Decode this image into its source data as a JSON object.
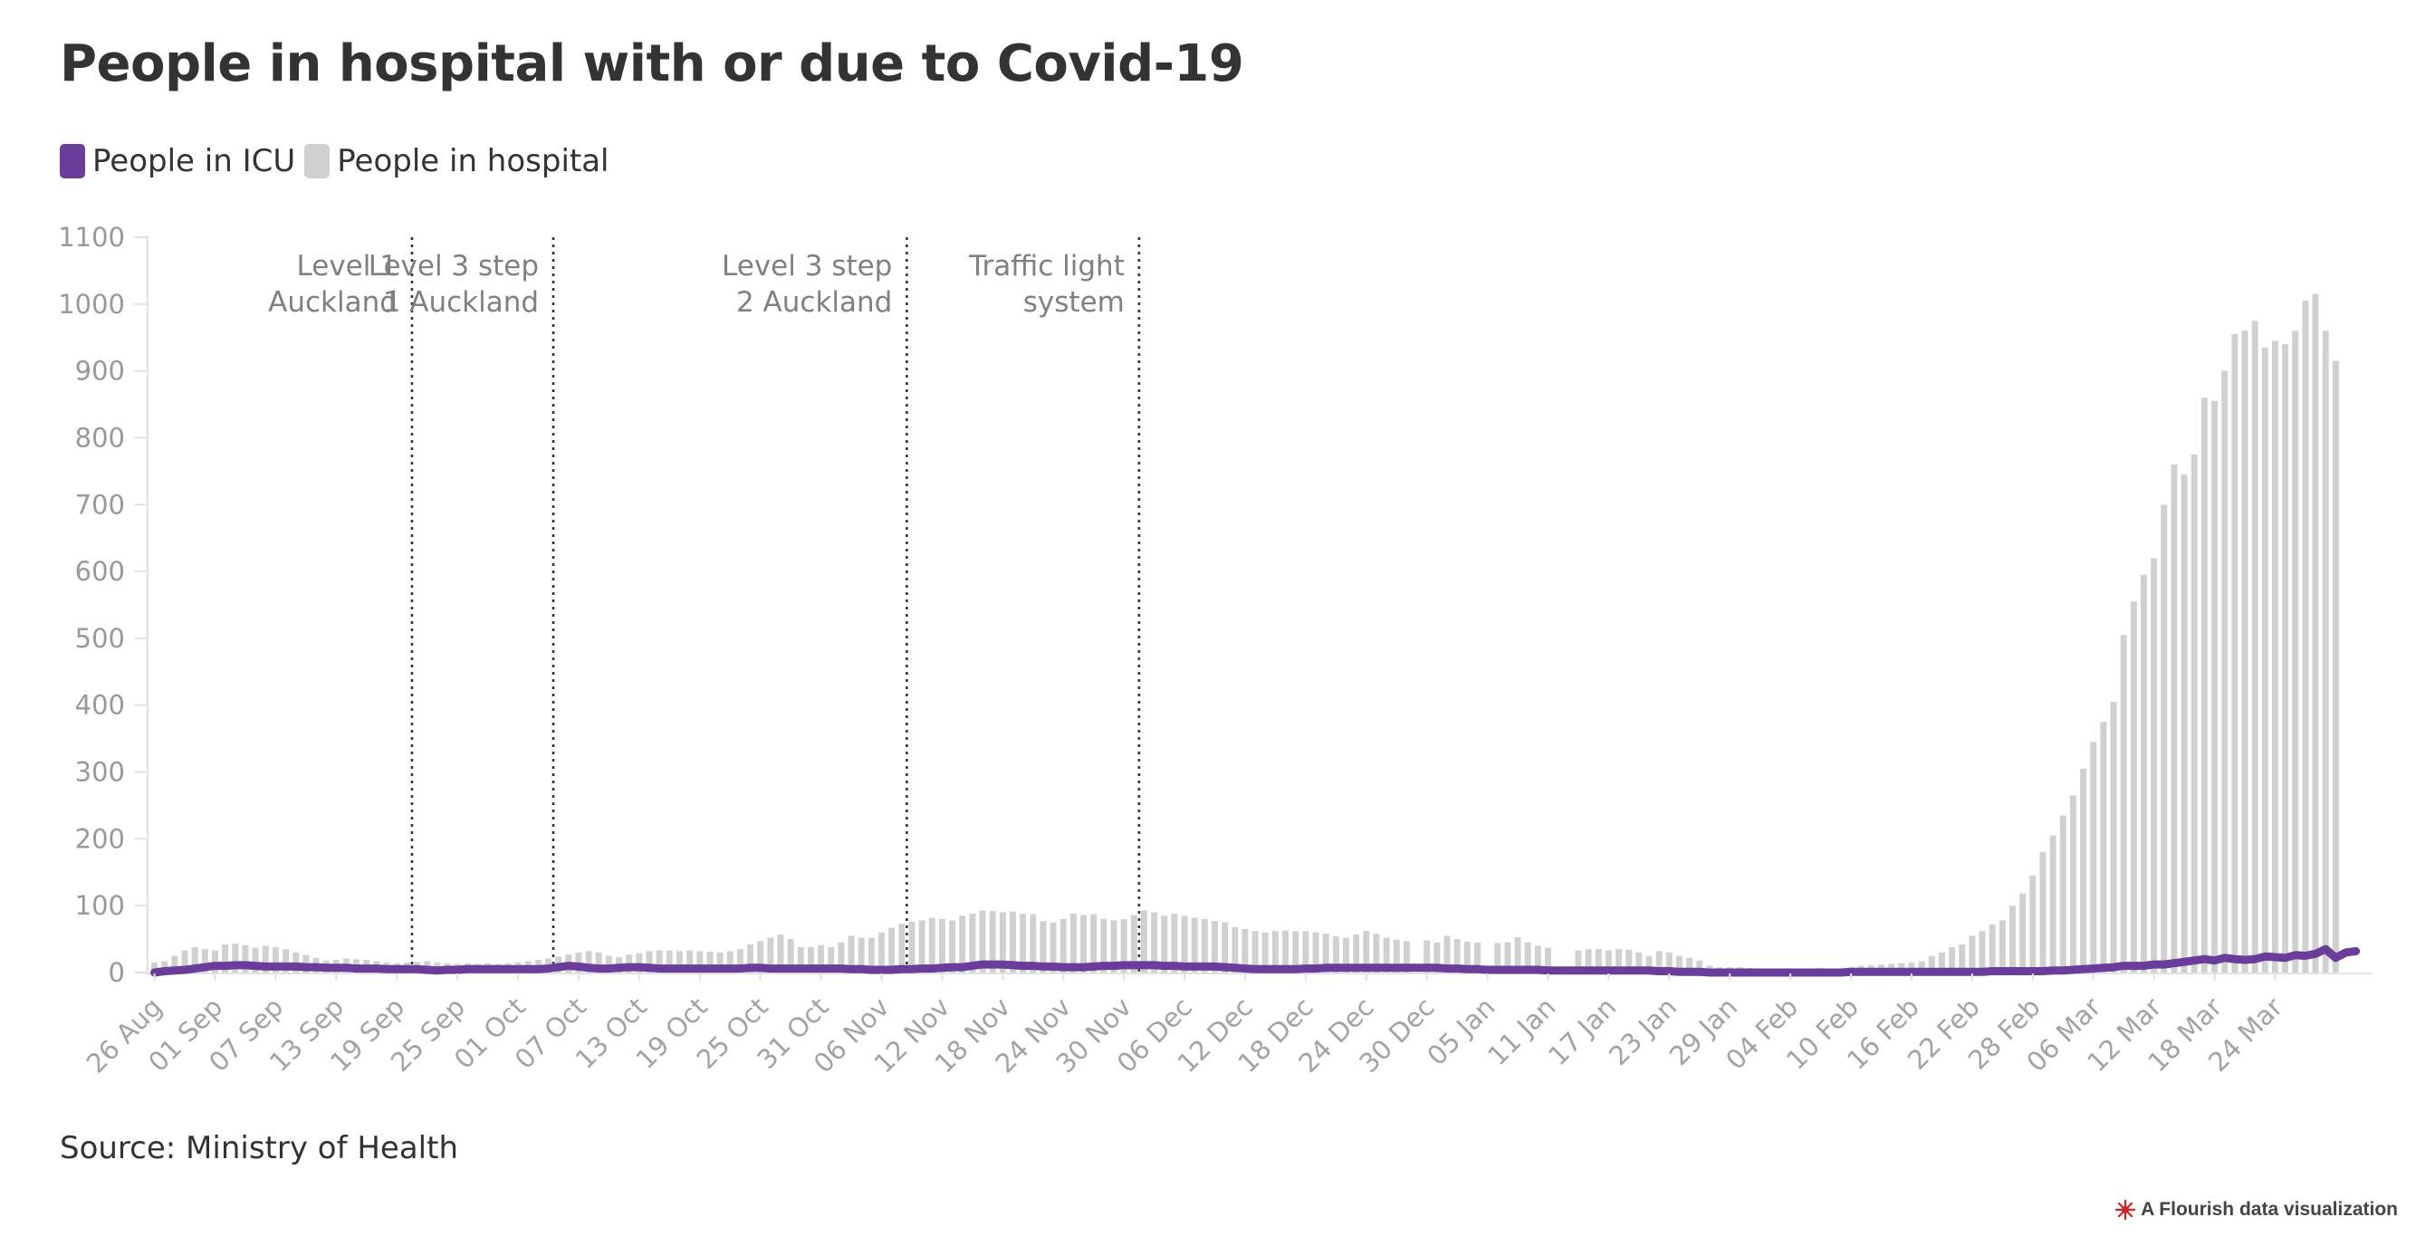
{
  "chart_data": {
    "type": "bar",
    "title": "People in hospital with or due to Covid-19",
    "source": "Source: Ministry of Health",
    "credit": "A Flourish data visualization",
    "colors": {
      "hospital": "#d0d0d0",
      "icu": "#6a3d9a",
      "annotation_line": "#333333"
    },
    "legend_position": "top-left",
    "grid": false,
    "ylim": [
      0,
      1100
    ],
    "yticks": [
      0,
      100,
      200,
      300,
      400,
      500,
      600,
      700,
      800,
      900,
      1000,
      1100
    ],
    "x_range": [
      "2021-08-26",
      "2022-03-25"
    ],
    "xticks": [
      "26 Aug",
      "01 Sep",
      "07 Sep",
      "13 Sep",
      "19 Sep",
      "25 Sep",
      "01 Oct",
      "07 Oct",
      "13 Oct",
      "19 Oct",
      "25 Oct",
      "31 Oct",
      "06 Nov",
      "12 Nov",
      "18 Nov",
      "24 Nov",
      "30 Nov",
      "06 Dec",
      "12 Dec",
      "18 Dec",
      "24 Dec",
      "30 Dec",
      "05 Jan",
      "11 Jan",
      "17 Jan",
      "23 Jan",
      "29 Jan",
      "04 Feb",
      "10 Feb",
      "16 Feb",
      "22 Feb",
      "28 Feb",
      "06 Mar",
      "12 Mar",
      "18 Mar",
      "24 Mar"
    ],
    "annotations": [
      {
        "date": "2021-09-21",
        "lines": [
          "Level 1",
          "Auckland"
        ]
      },
      {
        "date": "2021-10-05",
        "lines": [
          "Level 3 step",
          "1 Auckland"
        ]
      },
      {
        "date": "2021-11-09",
        "lines": [
          "Level 3 step",
          "2 Auckland"
        ]
      },
      {
        "date": "2021-12-02",
        "lines": [
          "Traffic light",
          "system"
        ]
      }
    ],
    "series": [
      {
        "name": "People in hospital",
        "type": "bar",
        "start": "2021-08-26",
        "values": [
          15,
          17,
          25,
          33,
          38,
          35,
          33,
          42,
          43,
          41,
          37,
          40,
          38,
          35,
          30,
          26,
          22,
          18,
          19,
          21,
          20,
          19,
          17,
          15,
          14,
          15,
          16,
          17,
          15,
          14,
          13,
          14,
          13,
          14,
          13,
          14,
          15,
          17,
          19,
          21,
          24,
          27,
          30,
          32,
          30,
          25,
          23,
          27,
          29,
          32,
          33,
          33,
          32,
          33,
          32,
          31,
          30,
          32,
          35,
          42,
          47,
          52,
          57,
          50,
          38,
          38,
          41,
          38,
          45,
          55,
          52,
          52,
          60,
          67,
          73,
          76,
          78,
          82,
          80,
          78,
          85,
          88,
          93,
          92,
          90,
          91,
          88,
          87,
          77,
          75,
          80,
          88,
          86,
          87,
          80,
          78,
          80,
          86,
          93,
          90,
          85,
          88,
          85,
          82,
          80,
          77,
          75,
          68,
          65,
          62,
          60,
          62,
          63,
          62,
          62,
          60,
          58,
          54,
          52,
          57,
          62,
          58,
          52,
          49,
          47,
          0,
          48,
          45,
          55,
          50,
          46,
          45,
          0,
          44,
          45,
          53,
          45,
          40,
          37,
          0,
          0,
          33,
          35,
          35,
          33,
          35,
          34,
          30,
          25,
          32,
          30,
          25,
          22,
          18,
          10,
          8,
          8,
          8,
          7,
          6,
          6,
          5,
          5,
          6,
          6,
          7,
          6,
          6,
          8,
          10,
          11,
          12,
          13,
          14,
          15,
          17,
          25,
          30,
          38,
          42,
          55,
          62,
          72,
          78,
          100,
          118,
          145,
          180,
          205,
          235,
          265,
          305,
          345,
          375,
          405,
          505,
          555,
          595,
          620,
          700,
          760,
          745,
          775,
          860,
          855,
          900,
          955,
          960,
          975,
          935,
          945,
          940,
          960,
          1005,
          1015,
          960,
          915
        ]
      },
      {
        "name": "People in ICU",
        "type": "line",
        "start": "2021-08-26",
        "values": [
          0,
          2,
          3,
          4,
          6,
          8,
          10,
          10,
          11,
          11,
          10,
          9,
          9,
          9,
          9,
          8,
          8,
          7,
          7,
          7,
          6,
          6,
          6,
          5,
          5,
          5,
          5,
          4,
          3,
          4,
          4,
          5,
          5,
          5,
          5,
          5,
          5,
          5,
          5,
          6,
          8,
          10,
          9,
          7,
          6,
          6,
          7,
          8,
          8,
          7,
          6,
          6,
          6,
          6,
          6,
          6,
          6,
          6,
          6,
          7,
          7,
          6,
          6,
          6,
          6,
          6,
          6,
          6,
          6,
          5,
          5,
          4,
          4,
          4,
          5,
          5,
          6,
          6,
          7,
          8,
          8,
          10,
          12,
          12,
          12,
          11,
          10,
          10,
          9,
          9,
          8,
          8,
          8,
          9,
          10,
          10,
          11,
          11,
          11,
          11,
          10,
          10,
          9,
          9,
          9,
          9,
          8,
          7,
          6,
          5,
          5,
          5,
          5,
          5,
          6,
          6,
          7,
          7,
          7,
          7,
          7,
          7,
          7,
          7,
          7,
          7,
          7,
          7,
          6,
          6,
          5,
          5,
          4,
          4,
          4,
          4,
          4,
          4,
          3,
          3,
          3,
          3,
          3,
          3,
          3,
          3,
          3,
          3,
          3,
          2,
          2,
          1,
          1,
          1,
          0,
          0,
          0,
          0,
          0,
          0,
          0,
          0,
          0,
          0,
          0,
          0,
          0,
          0,
          1,
          1,
          1,
          1,
          1,
          1,
          1,
          1,
          1,
          1,
          1,
          1,
          1,
          1,
          2,
          2,
          2,
          2,
          2,
          2,
          3,
          3,
          4,
          5,
          6,
          7,
          8,
          10,
          10,
          10,
          12,
          12,
          14,
          16,
          18,
          20,
          18,
          22,
          20,
          19,
          20,
          24,
          23,
          22,
          26,
          25,
          28,
          35,
          22,
          30,
          32
        ]
      }
    ]
  }
}
